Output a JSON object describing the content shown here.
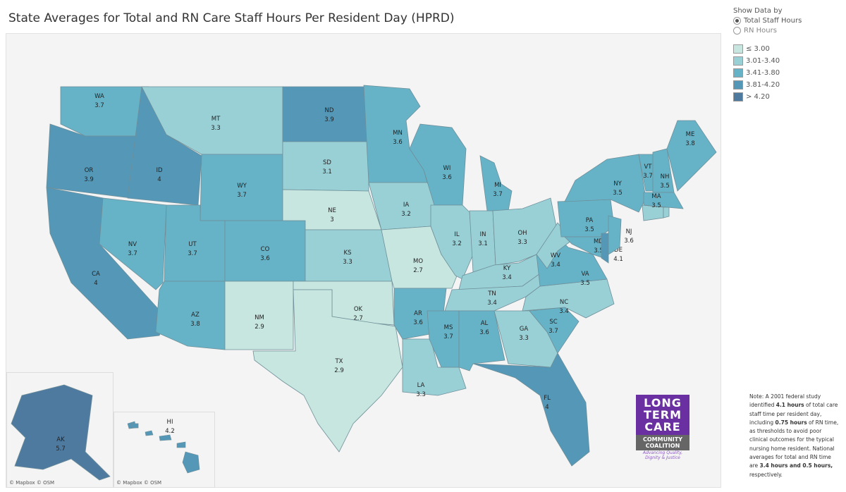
{
  "title": "State Averages for Total and RN Care Staff Hours Per Resident Day (HPRD)",
  "controls": {
    "heading": "Show Data by",
    "options": [
      {
        "label": "Total Staff Hours",
        "selected": true
      },
      {
        "label": "RN Hours",
        "selected": false
      }
    ]
  },
  "legend": [
    {
      "label": "≤ 3.00",
      "color": "#c6e6df"
    },
    {
      "label": "3.01-3.40",
      "color": "#99d0d6"
    },
    {
      "label": "3.41-3.80",
      "color": "#66b3c8"
    },
    {
      "label": "3.81-4.20",
      "color": "#5497b7"
    },
    {
      "label": "> 4.20",
      "color": "#4f7aa0"
    }
  ],
  "states": {
    "WA": {
      "value": "3.7",
      "bin": 2
    },
    "OR": {
      "value": "3.9",
      "bin": 3
    },
    "CA": {
      "value": "4",
      "bin": 3
    },
    "ID": {
      "value": "4",
      "bin": 3
    },
    "MT": {
      "value": "3.3",
      "bin": 1
    },
    "WY": {
      "value": "3.7",
      "bin": 2
    },
    "NV": {
      "value": "3.7",
      "bin": 2
    },
    "UT": {
      "value": "3.7",
      "bin": 2
    },
    "CO": {
      "value": "3.6",
      "bin": 2
    },
    "AZ": {
      "value": "3.8",
      "bin": 2
    },
    "NM": {
      "value": "2.9",
      "bin": 0
    },
    "ND": {
      "value": "3.9",
      "bin": 3
    },
    "SD": {
      "value": "3.1",
      "bin": 1
    },
    "NE": {
      "value": "3",
      "bin": 0
    },
    "KS": {
      "value": "3.3",
      "bin": 1
    },
    "OK": {
      "value": "2.7",
      "bin": 0
    },
    "TX": {
      "value": "2.9",
      "bin": 0
    },
    "MN": {
      "value": "3.6",
      "bin": 2
    },
    "IA": {
      "value": "3.2",
      "bin": 1
    },
    "MO": {
      "value": "2.7",
      "bin": 0
    },
    "AR": {
      "value": "3.6",
      "bin": 2
    },
    "LA": {
      "value": "3.3",
      "bin": 1
    },
    "WI": {
      "value": "3.6",
      "bin": 2
    },
    "IL": {
      "value": "3.2",
      "bin": 1
    },
    "IN": {
      "value": "3.1",
      "bin": 1
    },
    "MI": {
      "value": "3.7",
      "bin": 2
    },
    "OH": {
      "value": "3.3",
      "bin": 1
    },
    "KY": {
      "value": "3.4",
      "bin": 1
    },
    "TN": {
      "value": "3.4",
      "bin": 1
    },
    "MS": {
      "value": "3.7",
      "bin": 2
    },
    "AL": {
      "value": "3.6",
      "bin": 2
    },
    "GA": {
      "value": "3.3",
      "bin": 1
    },
    "FL": {
      "value": "4",
      "bin": 3
    },
    "SC": {
      "value": "3.7",
      "bin": 2
    },
    "NC": {
      "value": "3.4",
      "bin": 1
    },
    "VA": {
      "value": "3.5",
      "bin": 2
    },
    "WV": {
      "value": "3.4",
      "bin": 1
    },
    "PA": {
      "value": "3.5",
      "bin": 2
    },
    "MD": {
      "value": "3.5",
      "bin": 2
    },
    "DE": {
      "value": "4.1",
      "bin": 3
    },
    "NJ": {
      "value": "3.6",
      "bin": 2
    },
    "NY": {
      "value": "3.5",
      "bin": 2
    },
    "VT": {
      "value": "3.7",
      "bin": 2
    },
    "NH": {
      "value": "3.5",
      "bin": 2
    },
    "MA": {
      "value": "3.5",
      "bin": 2
    },
    "ME": {
      "value": "3.8",
      "bin": 2
    },
    "AK": {
      "value": "5.7",
      "bin": 4
    },
    "HI": {
      "value": "4.2",
      "bin": 3
    }
  },
  "unlabeled_regions": {
    "CT": {
      "bin": 1
    },
    "RI": {
      "bin": 1
    }
  },
  "attribution": "© Mapbox © OSM",
  "note": {
    "parts": [
      {
        "text": "Note: A 2001 federal study identified ",
        "bold": false
      },
      {
        "text": "4.1 hours",
        "bold": true
      },
      {
        "text": " of total care staff time per resident day, including ",
        "bold": false
      },
      {
        "text": "0.75 hours",
        "bold": true
      },
      {
        "text": " of RN time, as thresholds to avoid poor clinical outcomes for the typical nursing home resident. National averages for total and RN time are ",
        "bold": false
      },
      {
        "text": "3.4 hours and 0.5 hours,",
        "bold": true
      },
      {
        "text": " respectively.",
        "bold": false
      }
    ]
  },
  "logo": {
    "line1": "LONG TERM CARE",
    "line2": "COMMUNITY COALITION",
    "tagline": "Advancing Quality, Dignity & Justice"
  }
}
